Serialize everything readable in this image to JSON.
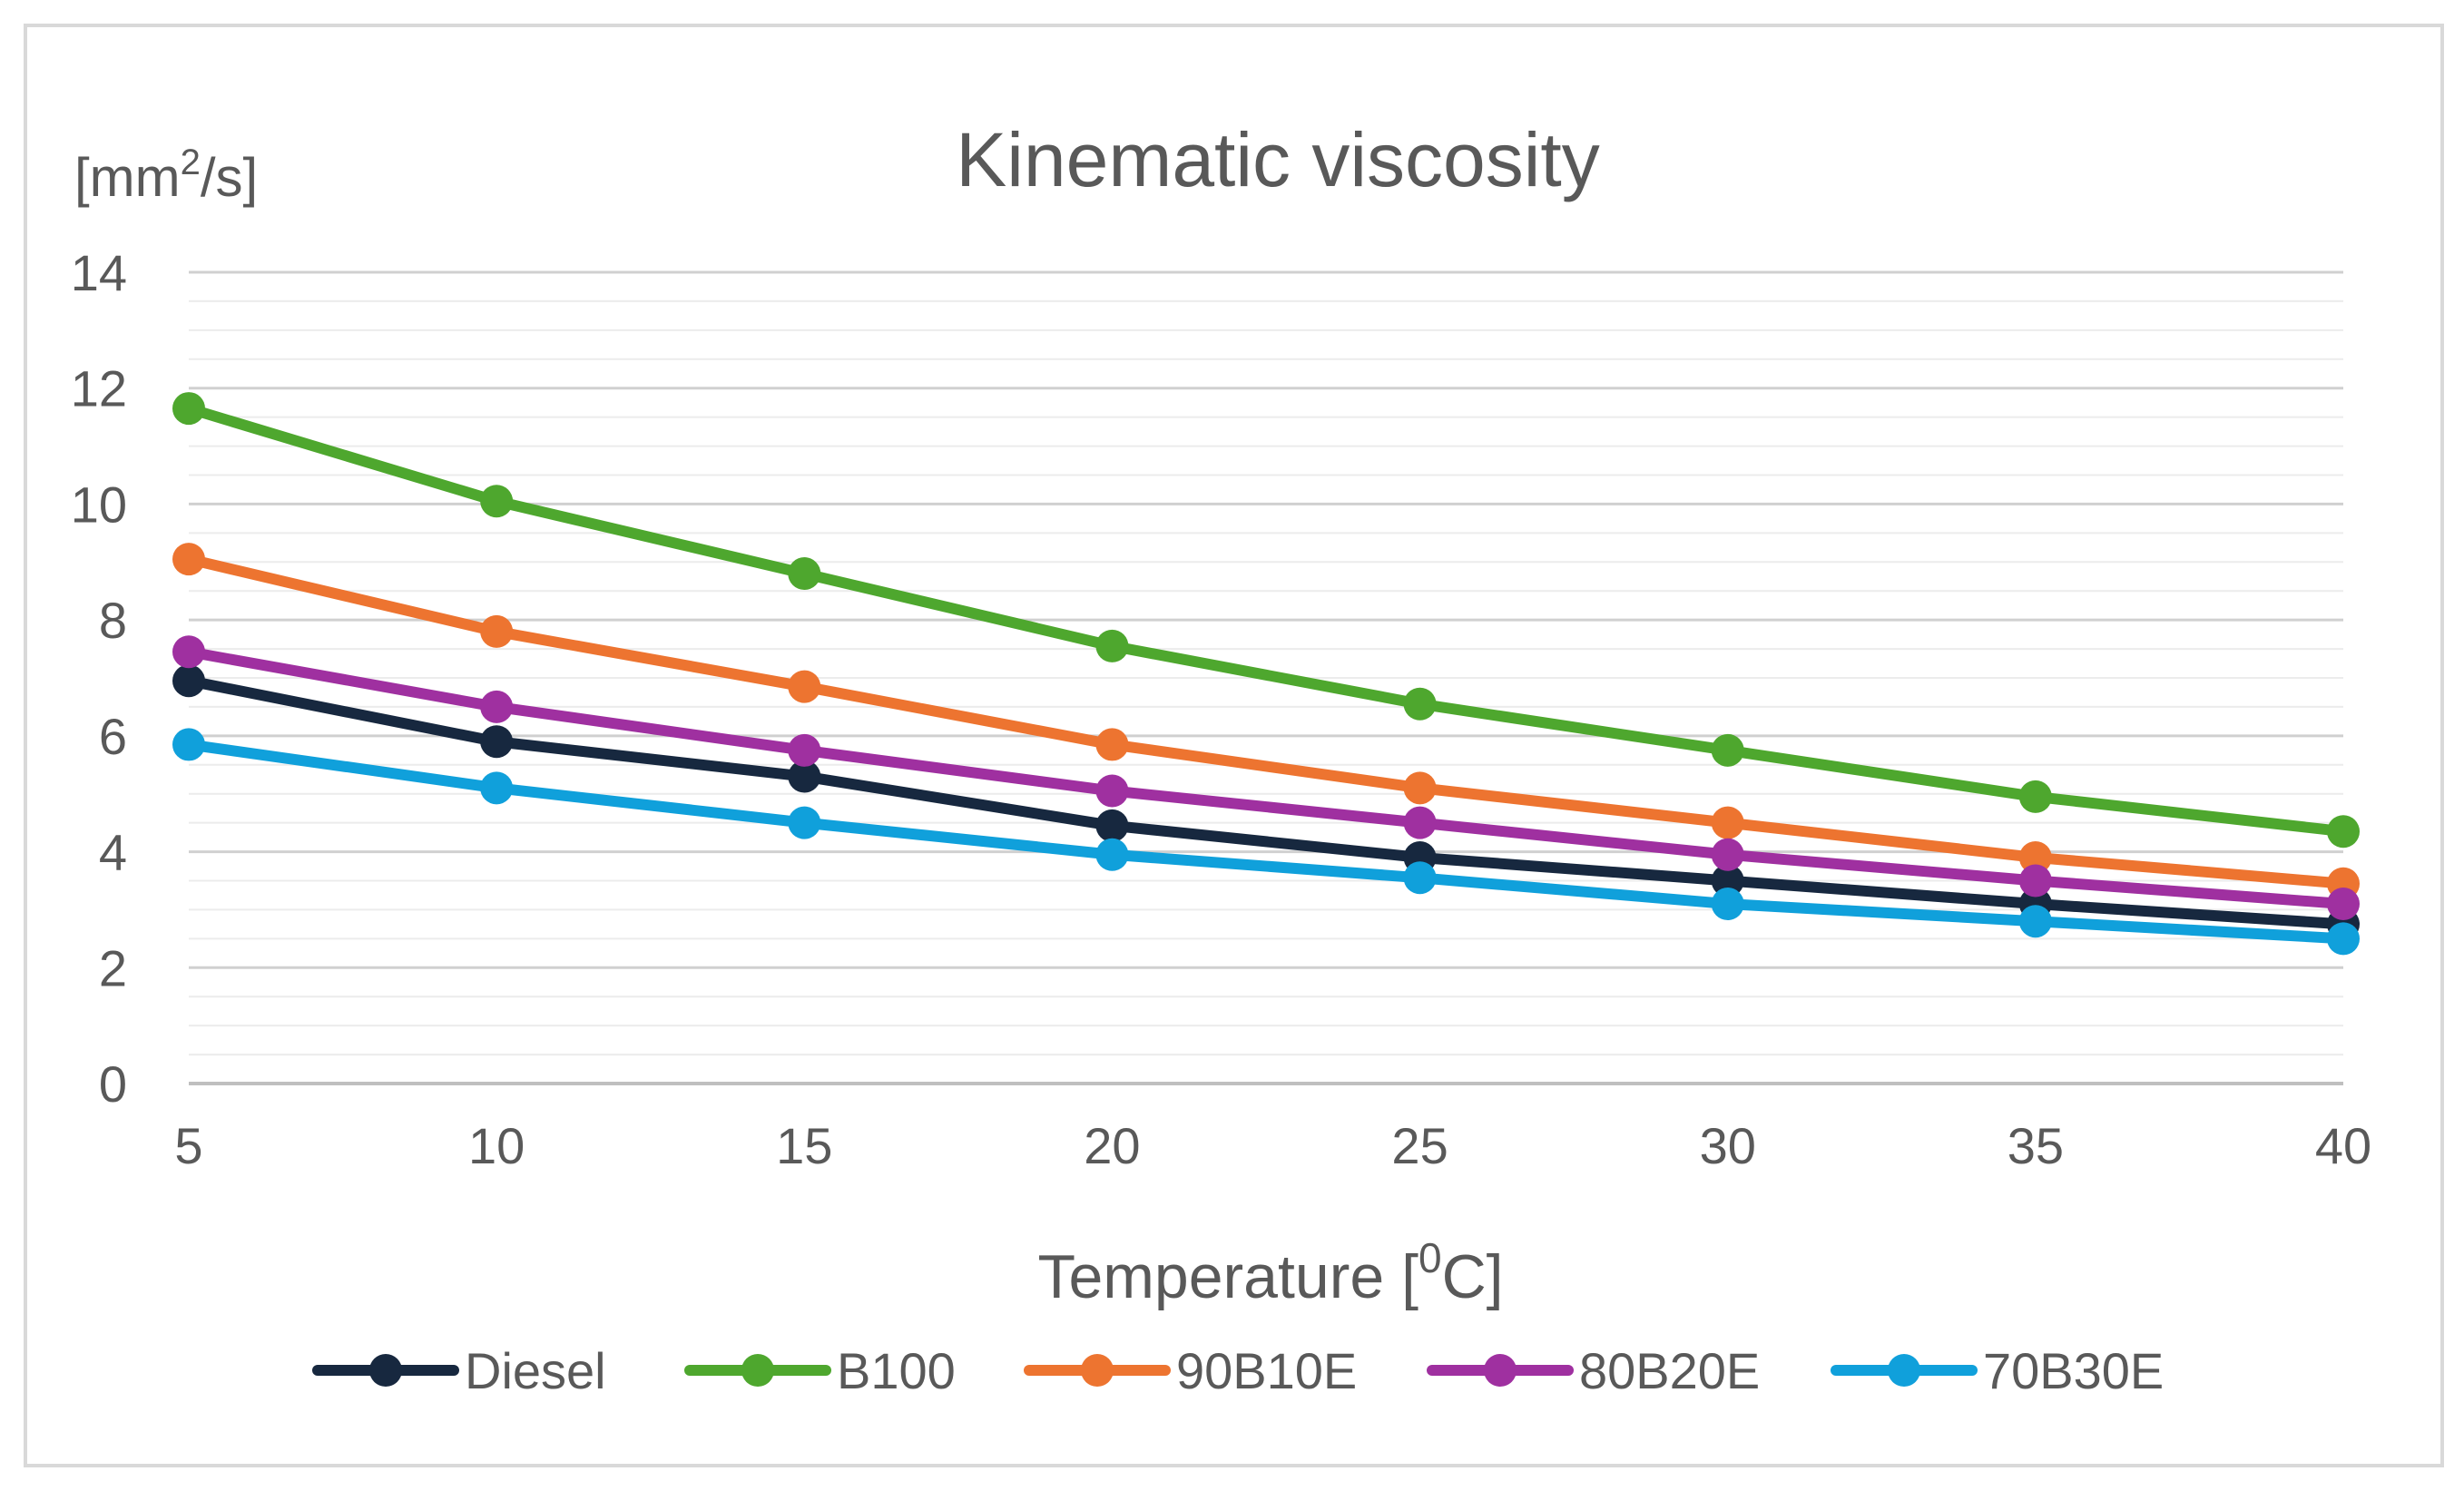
{
  "chart_data": {
    "type": "line",
    "title": "Kinematic viscosity",
    "ylabel": {
      "prefix": "[mm",
      "sup": "2",
      "suffix": "/s]"
    },
    "xlabel": {
      "prefix": "Temperature [",
      "sup": "0",
      "suffix": "C]"
    },
    "x": [
      5,
      10,
      15,
      20,
      25,
      30,
      35,
      40
    ],
    "xticks": [
      "5",
      "10",
      "15",
      "20",
      "25",
      "30",
      "35",
      "40"
    ],
    "ylim": [
      0,
      14
    ],
    "yticks": [
      "0",
      "2",
      "4",
      "6",
      "8",
      "10",
      "12",
      "14"
    ],
    "grid": true,
    "legend_position": "bottom",
    "series": [
      {
        "name": "Diesel",
        "color": "#17283f",
        "values": [
          6.95,
          5.9,
          5.3,
          4.45,
          3.9,
          3.5,
          3.1,
          2.75
        ]
      },
      {
        "name": "B100",
        "color": "#4ea72e",
        "values": [
          11.65,
          10.05,
          8.8,
          7.55,
          6.55,
          5.75,
          4.95,
          4.35
        ]
      },
      {
        "name": "90B10E",
        "color": "#ed7430",
        "values": [
          9.05,
          7.8,
          6.85,
          5.85,
          5.1,
          4.5,
          3.9,
          3.45
        ]
      },
      {
        "name": "80B20E",
        "color": "#9f30a0",
        "values": [
          7.45,
          6.5,
          5.75,
          5.05,
          4.5,
          3.95,
          3.5,
          3.1
        ]
      },
      {
        "name": "70B30E",
        "color": "#10a0db",
        "values": [
          5.85,
          5.1,
          4.5,
          3.95,
          3.55,
          3.1,
          2.8,
          2.5
        ]
      }
    ]
  }
}
